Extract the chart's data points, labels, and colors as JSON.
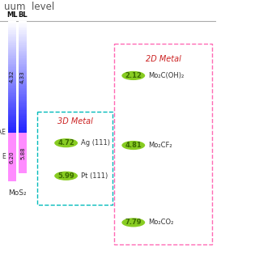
{
  "title": "uum  level",
  "bg_color": "#ffffff",
  "mos2_ml_wf": 4.32,
  "mos2_bl_wf": 4.33,
  "mos2_ml_vbm": 6.2,
  "mos2_bl_vbm": 5.88,
  "mos2_label": "MoS₂",
  "ag_value": 4.72,
  "ag_label": "Ag (111)",
  "pt_value": 5.99,
  "pt_label": "Pt (111)",
  "mo2c_oh_value": 2.12,
  "mo2c_oh_label": "Mo₂C(OH)₂",
  "mo2cf2_value": 4.81,
  "mo2cf2_label": "Mo₂CF₂",
  "mo2co2_value": 7.79,
  "mo2co2_label": "Mo₂CO₂",
  "metal_3d_box_color": "#00bbbb",
  "metal_2d_box_color": "#ff69b4",
  "metal_3d_label": "3D Metal",
  "metal_2d_label": "2D Metal",
  "ellipse_color": "#88cc22",
  "val_color": "#3a6a00",
  "label_color": "#333333",
  "red_label_color": "#cc2222"
}
